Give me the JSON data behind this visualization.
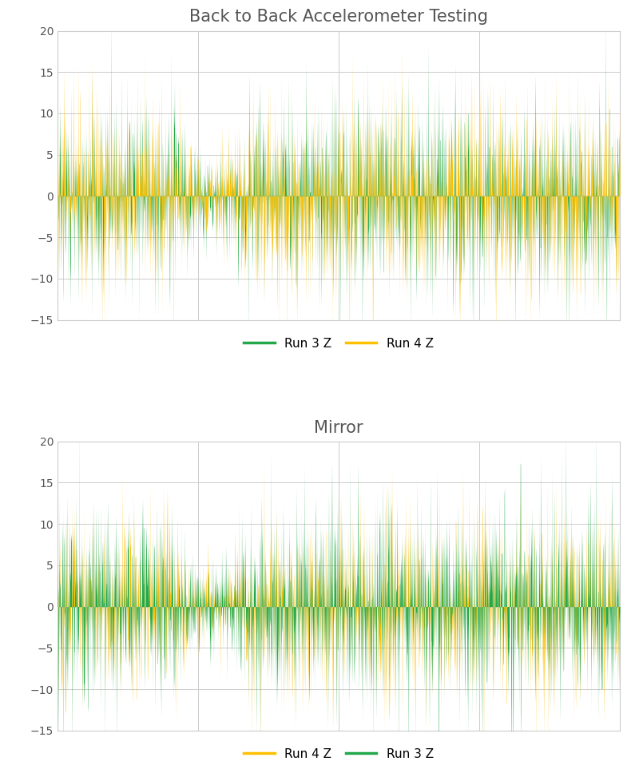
{
  "title1": "Back to Back Accelerometer Testing",
  "title2": "Mirror",
  "legend1": [
    "Run 3 Z",
    "Run 4 Z"
  ],
  "legend2": [
    "Run 4 Z",
    "Run 3 Z"
  ],
  "color_green": "#22a84a",
  "color_orange": "#FFC000",
  "ylim": [
    -15,
    20
  ],
  "yticks": [
    -15,
    -10,
    -5,
    0,
    5,
    10,
    15,
    20
  ],
  "n_points": 2000,
  "title_fontsize": 15,
  "tick_fontsize": 10,
  "legend_fontsize": 11,
  "bg_color": "#ffffff",
  "grid_color": "#cccccc",
  "linewidth": 0.5
}
